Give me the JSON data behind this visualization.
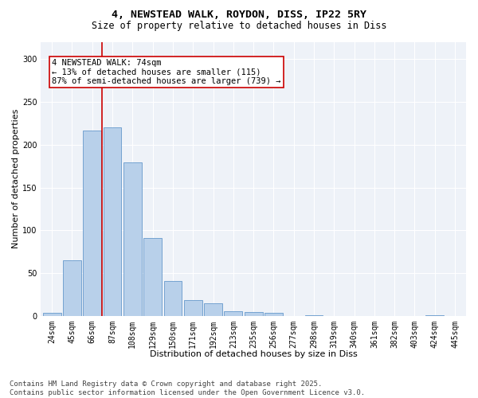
{
  "title1": "4, NEWSTEAD WALK, ROYDON, DISS, IP22 5RY",
  "title2": "Size of property relative to detached houses in Diss",
  "xlabel": "Distribution of detached houses by size in Diss",
  "ylabel": "Number of detached properties",
  "categories": [
    "24sqm",
    "45sqm",
    "66sqm",
    "87sqm",
    "108sqm",
    "129sqm",
    "150sqm",
    "171sqm",
    "192sqm",
    "213sqm",
    "235sqm",
    "256sqm",
    "277sqm",
    "298sqm",
    "319sqm",
    "340sqm",
    "361sqm",
    "382sqm",
    "403sqm",
    "424sqm",
    "445sqm"
  ],
  "bar_values": [
    4,
    65,
    216,
    220,
    179,
    91,
    41,
    19,
    15,
    6,
    5,
    4,
    0,
    1,
    0,
    0,
    0,
    0,
    0,
    1,
    0
  ],
  "bar_color": "#b8d0ea",
  "bar_edge_color": "#6699cc",
  "vline_color": "#cc0000",
  "annotation_text": "4 NEWSTEAD WALK: 74sqm\n← 13% of detached houses are smaller (115)\n87% of semi-detached houses are larger (739) →",
  "annotation_box_color": "#cc0000",
  "ylim": [
    0,
    320
  ],
  "yticks": [
    0,
    50,
    100,
    150,
    200,
    250,
    300
  ],
  "bg_color": "#eef2f8",
  "footer": "Contains HM Land Registry data © Crown copyright and database right 2025.\nContains public sector information licensed under the Open Government Licence v3.0.",
  "title_fontsize": 9.5,
  "subtitle_fontsize": 8.5,
  "axis_label_fontsize": 8,
  "tick_fontsize": 7,
  "annotation_fontsize": 7.5,
  "footer_fontsize": 6.5
}
